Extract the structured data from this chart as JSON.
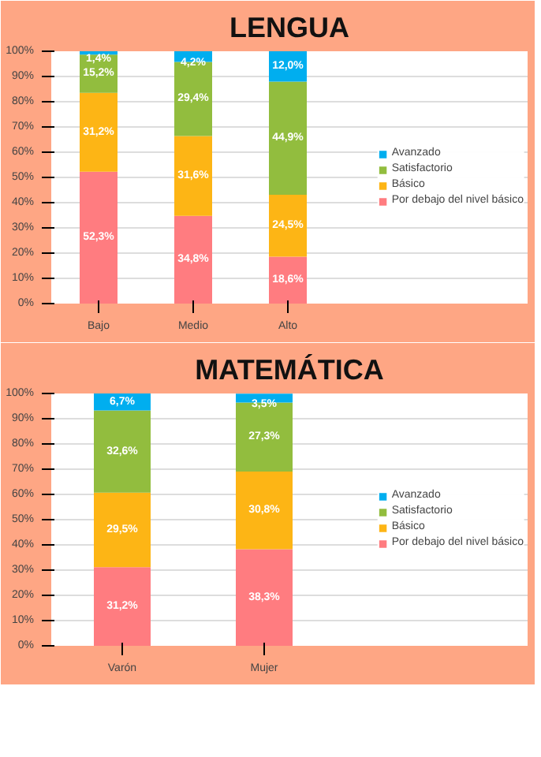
{
  "chart_data": [
    {
      "type": "bar",
      "title": "LENGUA",
      "stacked": true,
      "categories": [
        "Bajo",
        "Medio",
        "Alto"
      ],
      "ylim": [
        0,
        100
      ],
      "yticks": [
        {
          "value": 0,
          "label": "0%"
        },
        {
          "value": 10,
          "label": "10%"
        },
        {
          "value": 20,
          "label": "20%"
        },
        {
          "value": 30,
          "label": "30%"
        },
        {
          "value": 40,
          "label": "40%"
        },
        {
          "value": 50,
          "label": "50%"
        },
        {
          "value": 60,
          "label": "60%"
        },
        {
          "value": 70,
          "label": "70%"
        },
        {
          "value": 80,
          "label": "80%"
        },
        {
          "value": 90,
          "label": "90%"
        },
        {
          "value": 100,
          "label": "100%"
        }
      ],
      "grid": "y",
      "legend": "right",
      "series": [
        {
          "name": "Por debajo del nivel básico",
          "color": "#ff7c80",
          "values": [
            52.3,
            34.8,
            18.6
          ],
          "value_labels": [
            "52,3%",
            "34,8%",
            "18,6%"
          ]
        },
        {
          "name": "Básico",
          "color": "#fdb515",
          "values": [
            31.2,
            31.6,
            24.5
          ],
          "value_labels": [
            "31,2%",
            "31,6%",
            "24,5%"
          ]
        },
        {
          "name": "Satisfactorio",
          "color": "#92bd3e",
          "values": [
            15.2,
            29.4,
            44.9
          ],
          "value_labels": [
            "15,2%",
            "29,4%",
            "44,9%"
          ]
        },
        {
          "name": "Avanzado",
          "color": "#00aeef",
          "values": [
            1.4,
            4.2,
            12.0
          ],
          "value_labels": [
            "1,4%",
            "4,2%",
            "12,0%"
          ]
        }
      ]
    },
    {
      "type": "bar",
      "title": "MATEMÁTICA",
      "stacked": true,
      "categories": [
        "Varón",
        "Mujer"
      ],
      "ylim": [
        0,
        100
      ],
      "yticks": [
        {
          "value": 0,
          "label": "0%"
        },
        {
          "value": 10,
          "label": "10%"
        },
        {
          "value": 20,
          "label": "20%"
        },
        {
          "value": 30,
          "label": "30%"
        },
        {
          "value": 40,
          "label": "40%"
        },
        {
          "value": 50,
          "label": "50%"
        },
        {
          "value": 60,
          "label": "60%"
        },
        {
          "value": 70,
          "label": "70%"
        },
        {
          "value": 80,
          "label": "80%"
        },
        {
          "value": 90,
          "label": "90%"
        },
        {
          "value": 100,
          "label": "100%"
        }
      ],
      "grid": "y",
      "legend": "right",
      "series": [
        {
          "name": "Por debajo del nivel básico",
          "color": "#ff7c80",
          "values": [
            31.2,
            38.3
          ],
          "value_labels": [
            "31,2%",
            "38,3%"
          ]
        },
        {
          "name": "Básico",
          "color": "#fdb515",
          "values": [
            29.5,
            30.8
          ],
          "value_labels": [
            "29,5%",
            "30,8%"
          ]
        },
        {
          "name": "Satisfactorio",
          "color": "#92bd3e",
          "values": [
            32.6,
            27.3
          ],
          "value_labels": [
            "32,6%",
            "27,3%"
          ]
        },
        {
          "name": "Avanzado",
          "color": "#00aeef",
          "values": [
            6.7,
            3.5
          ],
          "value_labels": [
            "6,7%",
            "3,5%"
          ]
        }
      ]
    }
  ]
}
